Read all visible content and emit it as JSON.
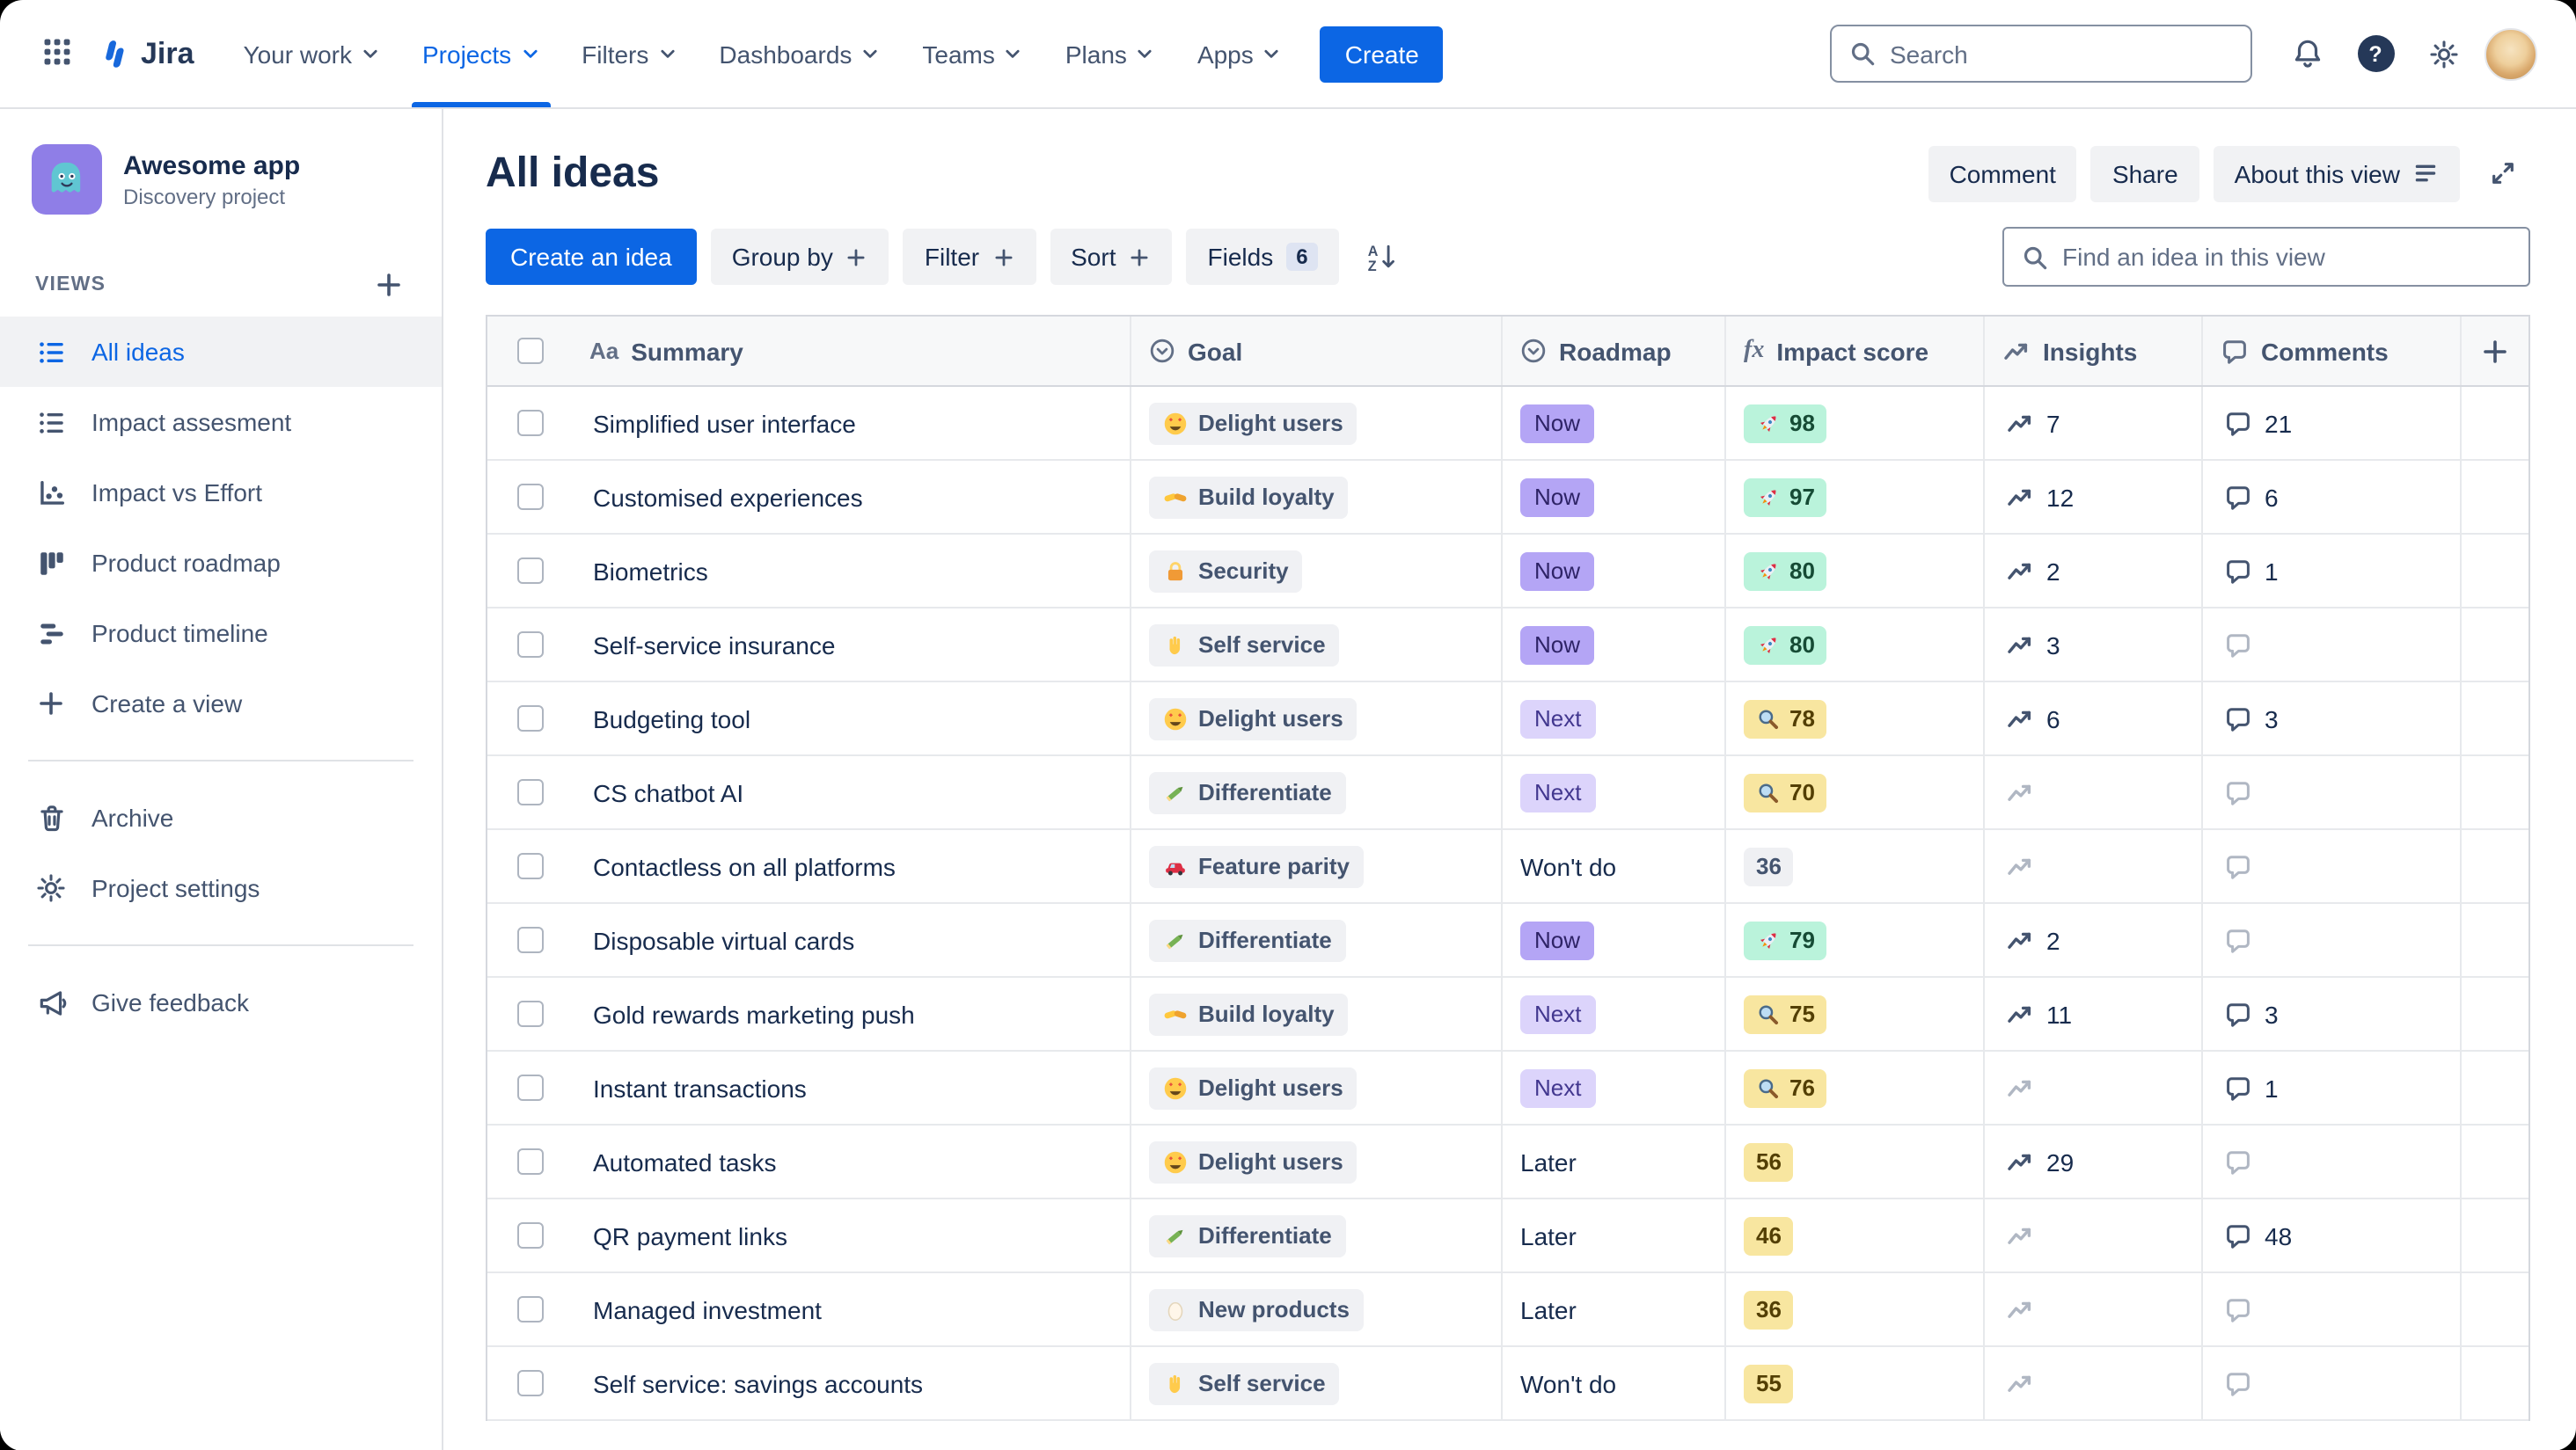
{
  "colors": {
    "brand_blue": "#0C66E4",
    "roadmap_now": "#B4A5F5",
    "roadmap_next": "#DCD4FB",
    "score_green": "#BAF3DB",
    "score_yellow": "#F8E6A0",
    "chip_neutral": "#F0F1F4"
  },
  "nav": {
    "logo_text": "Jira",
    "items": [
      {
        "label": "Your work"
      },
      {
        "label": "Projects",
        "active": true
      },
      {
        "label": "Filters"
      },
      {
        "label": "Dashboards"
      },
      {
        "label": "Teams"
      },
      {
        "label": "Plans"
      },
      {
        "label": "Apps"
      }
    ],
    "create_label": "Create",
    "search_placeholder": "Search"
  },
  "sidebar": {
    "project_name": "Awesome app",
    "project_type": "Discovery project",
    "views_label": "VIEWS",
    "views": [
      {
        "label": "All ideas",
        "icon": "list-icon",
        "active": true
      },
      {
        "label": "Impact assesment",
        "icon": "list-icon"
      },
      {
        "label": "Impact vs Effort",
        "icon": "scatter-icon"
      },
      {
        "label": "Product roadmap",
        "icon": "board-icon"
      },
      {
        "label": "Product timeline",
        "icon": "timeline-icon"
      },
      {
        "label": "Create a view",
        "icon": "plus-icon"
      }
    ],
    "tools": [
      {
        "label": "Archive",
        "icon": "trash-icon"
      },
      {
        "label": "Project settings",
        "icon": "gear-icon"
      }
    ],
    "footer": [
      {
        "label": "Give feedback",
        "icon": "megaphone-icon"
      }
    ]
  },
  "view_header": {
    "title": "All ideas",
    "comment_label": "Comment",
    "share_label": "Share",
    "about_label": "About this view"
  },
  "toolbar": {
    "create_idea_label": "Create an idea",
    "group_by_label": "Group by",
    "filter_label": "Filter",
    "sort_label": "Sort",
    "fields_label": "Fields",
    "fields_count": "6",
    "find_placeholder": "Find an idea in this view"
  },
  "table": {
    "columns": [
      {
        "label": "Summary",
        "icon": "text-type-icon"
      },
      {
        "label": "Goal",
        "icon": "select-icon"
      },
      {
        "label": "Roadmap",
        "icon": "select-icon"
      },
      {
        "label": "Impact score",
        "icon": "formula-icon"
      },
      {
        "label": "Insights",
        "icon": "trend-icon"
      },
      {
        "label": "Comments",
        "icon": "comment-icon"
      }
    ],
    "rows": [
      {
        "summary": "Simplified user interface",
        "goal": {
          "icon": "heart-eyes-icon",
          "label": "Delight users"
        },
        "roadmap": {
          "label": "Now",
          "variant": "now"
        },
        "impact": {
          "value": "98",
          "variant": "green",
          "icon": "rocket-icon"
        },
        "insights": "7",
        "comments": "21"
      },
      {
        "summary": "Customised experiences",
        "goal": {
          "icon": "handshake-icon",
          "label": "Build loyalty"
        },
        "roadmap": {
          "label": "Now",
          "variant": "now"
        },
        "impact": {
          "value": "97",
          "variant": "green",
          "icon": "rocket-icon"
        },
        "insights": "12",
        "comments": "6"
      },
      {
        "summary": "Biometrics",
        "goal": {
          "icon": "lock-icon",
          "label": "Security"
        },
        "roadmap": {
          "label": "Now",
          "variant": "now"
        },
        "impact": {
          "value": "80",
          "variant": "green",
          "icon": "rocket-icon"
        },
        "insights": "2",
        "comments": "1"
      },
      {
        "summary": "Self-service insurance",
        "goal": {
          "icon": "hand-icon",
          "label": "Self service"
        },
        "roadmap": {
          "label": "Now",
          "variant": "now"
        },
        "impact": {
          "value": "80",
          "variant": "green",
          "icon": "rocket-icon"
        },
        "insights": "3",
        "comments": null
      },
      {
        "summary": "Budgeting tool",
        "goal": {
          "icon": "heart-eyes-icon",
          "label": "Delight users"
        },
        "roadmap": {
          "label": "Next",
          "variant": "next"
        },
        "impact": {
          "value": "78",
          "variant": "yellow",
          "icon": "magnifier-impact-icon"
        },
        "insights": "6",
        "comments": "3"
      },
      {
        "summary": "CS chatbot AI",
        "goal": {
          "icon": "pencil-icon",
          "label": "Differentiate"
        },
        "roadmap": {
          "label": "Next",
          "variant": "next"
        },
        "impact": {
          "value": "70",
          "variant": "yellow",
          "icon": "magnifier-impact-icon"
        },
        "insights": null,
        "comments": null
      },
      {
        "summary": "Contactless on all platforms",
        "goal": {
          "icon": "car-icon",
          "label": "Feature parity"
        },
        "roadmap": {
          "label": "Won't do",
          "variant": "plain"
        },
        "impact": {
          "value": "36",
          "variant": "gray",
          "icon": null
        },
        "insights": null,
        "comments": null
      },
      {
        "summary": "Disposable virtual cards",
        "goal": {
          "icon": "pencil-icon",
          "label": "Differentiate"
        },
        "roadmap": {
          "label": "Now",
          "variant": "now"
        },
        "impact": {
          "value": "79",
          "variant": "green",
          "icon": "rocket-icon"
        },
        "insights": "2",
        "comments": null
      },
      {
        "summary": "Gold rewards marketing push",
        "goal": {
          "icon": "handshake-icon",
          "label": "Build loyalty"
        },
        "roadmap": {
          "label": "Next",
          "variant": "next"
        },
        "impact": {
          "value": "75",
          "variant": "yellow",
          "icon": "magnifier-impact-icon"
        },
        "insights": "11",
        "comments": "3"
      },
      {
        "summary": "Instant transactions",
        "goal": {
          "icon": "heart-eyes-icon",
          "label": "Delight users"
        },
        "roadmap": {
          "label": "Next",
          "variant": "next"
        },
        "impact": {
          "value": "76",
          "variant": "yellow",
          "icon": "magnifier-impact-icon"
        },
        "insights": null,
        "comments": "1"
      },
      {
        "summary": "Automated tasks",
        "goal": {
          "icon": "heart-eyes-icon",
          "label": "Delight users"
        },
        "roadmap": {
          "label": "Later",
          "variant": "plain"
        },
        "impact": {
          "value": "56",
          "variant": "yellow",
          "icon": null
        },
        "insights": "29",
        "comments": null
      },
      {
        "summary": "QR payment links",
        "goal": {
          "icon": "pencil-icon",
          "label": "Differentiate"
        },
        "roadmap": {
          "label": "Later",
          "variant": "plain"
        },
        "impact": {
          "value": "46",
          "variant": "yellow",
          "icon": null
        },
        "insights": null,
        "comments": "48"
      },
      {
        "summary": "Managed investment",
        "goal": {
          "icon": "egg-icon",
          "label": "New products"
        },
        "roadmap": {
          "label": "Later",
          "variant": "plain"
        },
        "impact": {
          "value": "36",
          "variant": "yellow",
          "icon": null
        },
        "insights": null,
        "comments": null
      },
      {
        "summary": "Self service: savings accounts",
        "goal": {
          "icon": "hand-icon",
          "label": "Self service"
        },
        "roadmap": {
          "label": "Won't do",
          "variant": "plain"
        },
        "impact": {
          "value": "55",
          "variant": "yellow",
          "icon": null
        },
        "insights": null,
        "comments": null
      }
    ]
  }
}
